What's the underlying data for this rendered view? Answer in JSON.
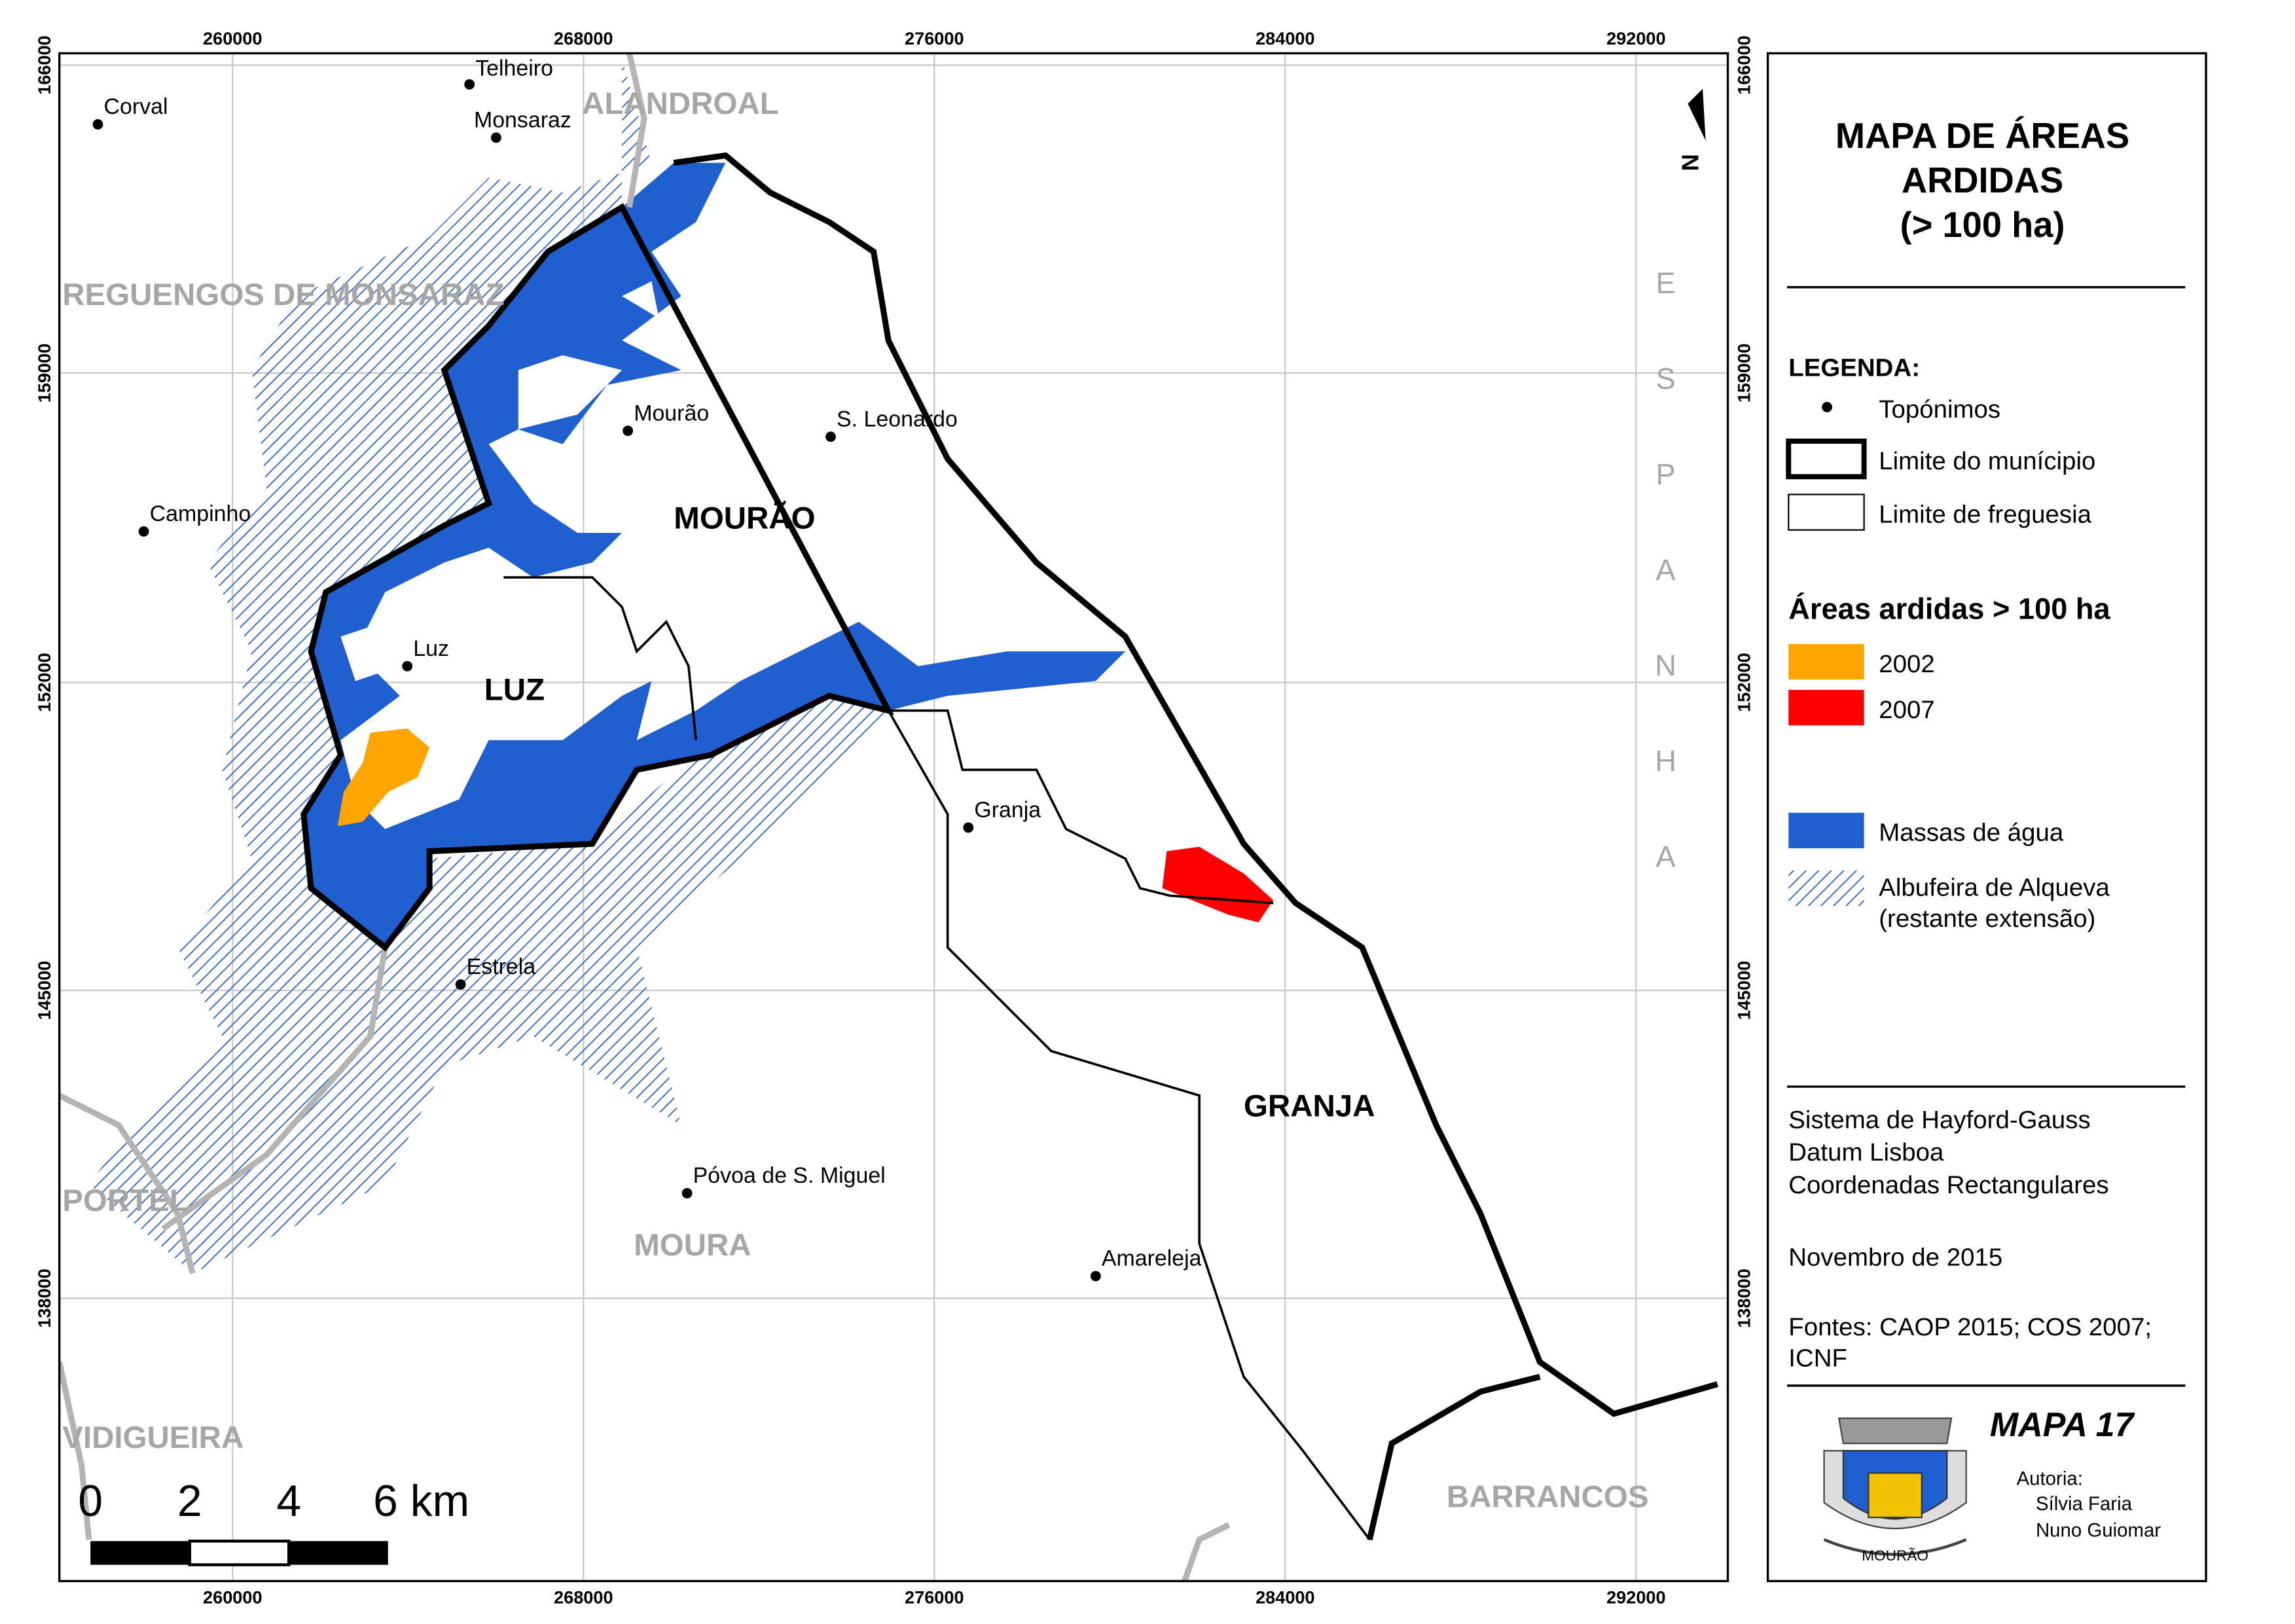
{
  "grid": {
    "x_labels": [
      "260000",
      "268000",
      "276000",
      "284000",
      "292000"
    ],
    "y_labels": [
      "166000",
      "159000",
      "152000",
      "145000",
      "138000"
    ]
  },
  "places": [
    "Telheiro",
    "Corval",
    "Monsaraz",
    "Mourão",
    "S. Leonardo",
    "Campinho",
    "Luz",
    "Granja",
    "Estrela",
    "Póvoa de S. Miguel",
    "Amareleja"
  ],
  "municipalities": [
    "ALANDROAL",
    "REGUENGOS DE MONSARAZ",
    "PORTEL",
    "MOURA",
    "VIDIGUEIRA",
    "BARRANCOS"
  ],
  "parishes": [
    "MOURÃO",
    "LUZ",
    "GRANJA"
  ],
  "country": "ESPANHA",
  "north": "N",
  "scale_labels": [
    "0",
    "2",
    "4",
    "6 km"
  ],
  "title": [
    "MAPA DE ÁREAS",
    "ARDIDAS",
    "(> 100 ha)"
  ],
  "legend": {
    "heading": "LEGENDA:",
    "items": [
      "Topónimos",
      "Limite do munícipio",
      "Limite de freguesia"
    ],
    "burned_heading": "Áreas ardidas > 100 ha",
    "burned": [
      "2002",
      "2007"
    ],
    "water": [
      "Massas de água",
      "Albufeira de Alqueva",
      "(restante extensão)"
    ]
  },
  "info": [
    "Sistema de Hayford-Gauss",
    "Datum Lisboa",
    "Coordenadas Rectangulares"
  ],
  "date": "Novembro de 2015",
  "sources": [
    "Fontes: CAOP 2015; COS 2007;",
    "ICNF"
  ],
  "map_number": "MAPA 17",
  "authors": [
    "Autoria:",
    "Sílvia Faria",
    "Nuno Guiomar"
  ],
  "emblem": "MOURÃO"
}
